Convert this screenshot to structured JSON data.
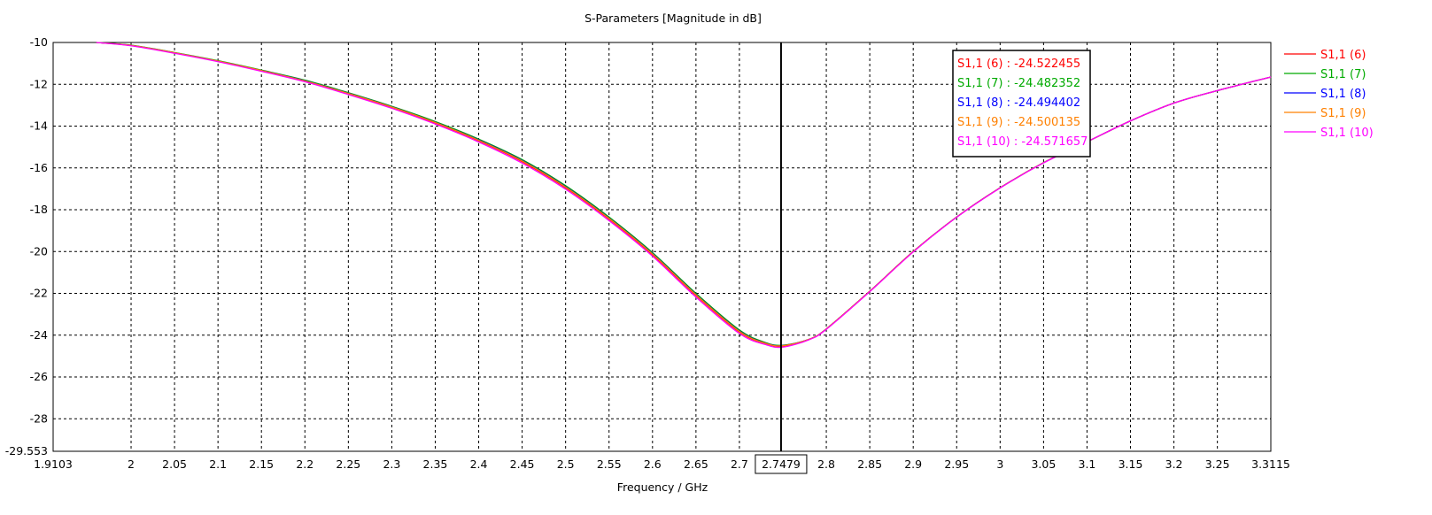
{
  "chart_data": {
    "type": "line",
    "title": "S-Parameters [Magnitude in dB]",
    "xlabel": "Frequency / GHz",
    "ylabel": "",
    "xlim": [
      1.9103,
      3.3115
    ],
    "ylim": [
      -29.553,
      -10
    ],
    "grid": true,
    "legend_position": "right",
    "x_ticks": [
      {
        "value": 1.9103,
        "label": "1.9103"
      },
      {
        "value": 2.0,
        "label": "2"
      },
      {
        "value": 2.05,
        "label": "2.05"
      },
      {
        "value": 2.1,
        "label": "2.1"
      },
      {
        "value": 2.15,
        "label": "2.15"
      },
      {
        "value": 2.2,
        "label": "2.2"
      },
      {
        "value": 2.25,
        "label": "2.25"
      },
      {
        "value": 2.3,
        "label": "2.3"
      },
      {
        "value": 2.35,
        "label": "2.35"
      },
      {
        "value": 2.4,
        "label": "2.4"
      },
      {
        "value": 2.45,
        "label": "2.45"
      },
      {
        "value": 2.5,
        "label": "2.5"
      },
      {
        "value": 2.55,
        "label": "2.55"
      },
      {
        "value": 2.6,
        "label": "2.6"
      },
      {
        "value": 2.65,
        "label": "2.65"
      },
      {
        "value": 2.7,
        "label": "2.7"
      },
      {
        "value": 2.8,
        "label": "2.8"
      },
      {
        "value": 2.85,
        "label": "2.85"
      },
      {
        "value": 2.9,
        "label": "2.9"
      },
      {
        "value": 2.95,
        "label": "2.95"
      },
      {
        "value": 3.0,
        "label": "3"
      },
      {
        "value": 3.05,
        "label": "3.05"
      },
      {
        "value": 3.1,
        "label": "3.1"
      },
      {
        "value": 3.15,
        "label": "3.15"
      },
      {
        "value": 3.2,
        "label": "3.2"
      },
      {
        "value": 3.25,
        "label": "3.25"
      },
      {
        "value": 3.3115,
        "label": "3.3115"
      }
    ],
    "y_ticks": [
      {
        "value": -10,
        "label": "-10"
      },
      {
        "value": -12,
        "label": "-12"
      },
      {
        "value": -14,
        "label": "-14"
      },
      {
        "value": -16,
        "label": "-16"
      },
      {
        "value": -18,
        "label": "-18"
      },
      {
        "value": -20,
        "label": "-20"
      },
      {
        "value": -22,
        "label": "-22"
      },
      {
        "value": -24,
        "label": "-24"
      },
      {
        "value": -26,
        "label": "-26"
      },
      {
        "value": -28,
        "label": "-28"
      },
      {
        "value": -29.553,
        "label": "-29.553"
      }
    ],
    "marker": {
      "x": 2.7479,
      "label": "2.7479",
      "readouts": [
        {
          "text": "S1,1 (6) : -24.522455",
          "color": "#ff0000"
        },
        {
          "text": "S1,1 (7) : -24.482352",
          "color": "#00aa00"
        },
        {
          "text": "S1,1 (8) : -24.494402",
          "color": "#0000ff"
        },
        {
          "text": "S1,1 (9) : -24.500135",
          "color": "#ff8000"
        },
        {
          "text": "S1,1 (10) : -24.571657",
          "color": "#ff00ff"
        }
      ]
    },
    "x": [
      1.96,
      2.0,
      2.05,
      2.1,
      2.15,
      2.2,
      2.25,
      2.3,
      2.35,
      2.4,
      2.45,
      2.5,
      2.55,
      2.6,
      2.65,
      2.7,
      2.73,
      2.75,
      2.78,
      2.8,
      2.85,
      2.9,
      2.95,
      3.0,
      3.05,
      3.1,
      3.15,
      3.2,
      3.25,
      3.3115
    ],
    "series": [
      {
        "name": "S1,1 (6)",
        "color": "#ff0000",
        "values": [
          -10.0,
          -10.15,
          -10.5,
          -10.9,
          -11.35,
          -11.85,
          -12.45,
          -13.1,
          -13.85,
          -14.7,
          -15.7,
          -16.95,
          -18.45,
          -20.15,
          -22.1,
          -23.85,
          -24.4,
          -24.52,
          -24.2,
          -23.7,
          -21.9,
          -20.0,
          -18.35,
          -16.95,
          -15.75,
          -14.75,
          -13.75,
          -12.9,
          -12.3,
          -11.65
        ]
      },
      {
        "name": "S1,1 (7)",
        "color": "#00aa00",
        "values": [
          -10.0,
          -10.13,
          -10.48,
          -10.87,
          -11.32,
          -11.8,
          -12.4,
          -13.05,
          -13.78,
          -14.62,
          -15.6,
          -16.85,
          -18.35,
          -20.05,
          -22.0,
          -23.75,
          -24.35,
          -24.48,
          -24.2,
          -23.7,
          -21.9,
          -20.0,
          -18.35,
          -16.95,
          -15.75,
          -14.75,
          -13.75,
          -12.9,
          -12.3,
          -11.65
        ]
      },
      {
        "name": "S1,1 (8)",
        "color": "#0000ff",
        "values": [
          -10.0,
          -10.14,
          -10.49,
          -10.89,
          -11.34,
          -11.83,
          -12.43,
          -13.08,
          -13.82,
          -14.66,
          -15.65,
          -16.9,
          -18.4,
          -20.1,
          -22.05,
          -23.8,
          -24.38,
          -24.49,
          -24.2,
          -23.7,
          -21.9,
          -20.0,
          -18.35,
          -16.95,
          -15.75,
          -14.75,
          -13.75,
          -12.9,
          -12.3,
          -11.65
        ]
      },
      {
        "name": "S1,1 (9)",
        "color": "#ff8000",
        "values": [
          -10.0,
          -10.14,
          -10.49,
          -10.89,
          -11.34,
          -11.84,
          -12.44,
          -13.09,
          -13.83,
          -14.68,
          -15.67,
          -16.92,
          -18.42,
          -20.12,
          -22.07,
          -23.82,
          -24.39,
          -24.5,
          -24.2,
          -23.7,
          -21.9,
          -20.0,
          -18.35,
          -16.95,
          -15.75,
          -14.75,
          -13.75,
          -12.9,
          -12.3,
          -11.65
        ]
      },
      {
        "name": "S1,1 (10)",
        "color": "#ff00ff",
        "values": [
          -10.0,
          -10.16,
          -10.52,
          -10.92,
          -11.38,
          -11.88,
          -12.49,
          -13.15,
          -13.9,
          -14.76,
          -15.77,
          -17.02,
          -18.52,
          -20.22,
          -22.18,
          -23.92,
          -24.45,
          -24.57,
          -24.22,
          -23.72,
          -21.92,
          -20.02,
          -18.36,
          -16.96,
          -15.76,
          -14.75,
          -13.75,
          -12.9,
          -12.3,
          -11.65
        ]
      }
    ]
  }
}
